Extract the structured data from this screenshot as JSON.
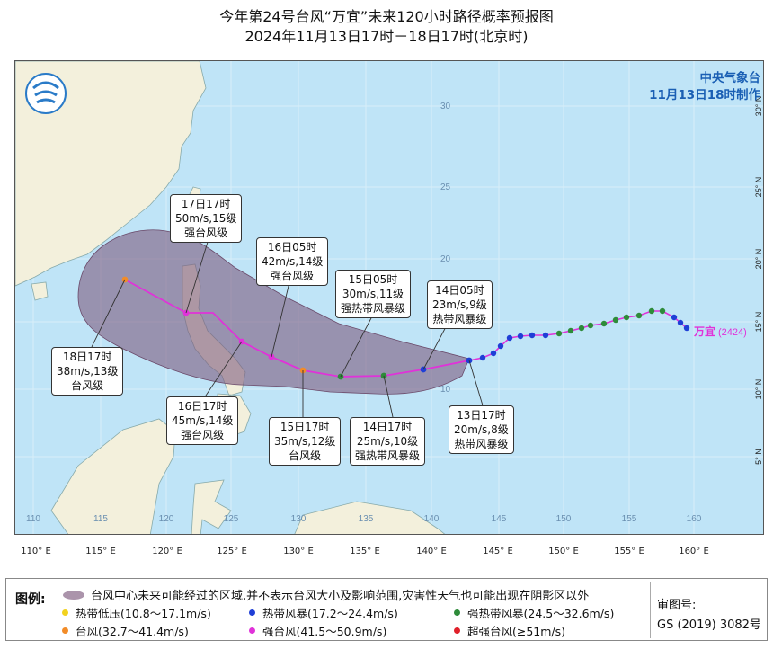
{
  "title": {
    "line1": "今年第24号台风“万宜”未来120小时路径概率预报图",
    "line2": "2024年11月13日17时－18日17时(北京时)"
  },
  "issuer": {
    "name": "中央气象台",
    "made_at": "11月13日18时制作"
  },
  "typhoon_label": {
    "name": "万宜",
    "code": "(2424)"
  },
  "callouts": [
    {
      "id": "18-17",
      "time": "18日17时",
      "wind": "38m/s,13级",
      "grade": "台风级"
    },
    {
      "id": "17-17",
      "time": "17日17时",
      "wind": "50m/s,15级",
      "grade": "强台风级"
    },
    {
      "id": "16-17",
      "time": "16日17时",
      "wind": "45m/s,14级",
      "grade": "强台风级"
    },
    {
      "id": "16-05",
      "time": "16日05时",
      "wind": "42m/s,14级",
      "grade": "强台风级"
    },
    {
      "id": "15-17",
      "time": "15日17时",
      "wind": "35m/s,12级",
      "grade": "台风级"
    },
    {
      "id": "15-05",
      "time": "15日05时",
      "wind": "30m/s,11级",
      "grade": "强热带风暴级"
    },
    {
      "id": "14-17",
      "time": "14日17时",
      "wind": "25m/s,10级",
      "grade": "强热带风暴级"
    },
    {
      "id": "14-05",
      "time": "14日05时",
      "wind": "23m/s,9级",
      "grade": "热带风暴级"
    },
    {
      "id": "13-17",
      "time": "13日17时",
      "wind": "20m/s,8级",
      "grade": "热带风暴级"
    }
  ],
  "grid": {
    "lon_inside": [
      "110",
      "115",
      "120",
      "125",
      "130",
      "135",
      "140",
      "145",
      "150",
      "155",
      "160"
    ],
    "lon_axis": [
      "110° E",
      "115° E",
      "120° E",
      "125° E",
      "130° E",
      "135° E",
      "140° E",
      "145° E",
      "150° E",
      "155° E",
      "160° E"
    ],
    "lat_inside": [
      "30",
      "25",
      "20",
      "15",
      "10"
    ],
    "lat_axis": [
      "30° N",
      "25° N",
      "20° N",
      "15° N",
      "10° N",
      "5° N"
    ]
  },
  "legend": {
    "title": "图例:",
    "area_desc": "台风中心未来可能经过的区域,并不表示台风大小及影响范围,灾害性天气也可能出现在阴影区以外",
    "items": [
      {
        "label": "热带低压(10.8～17.1m/s)",
        "color": "#f2d21e"
      },
      {
        "label": "热带风暴(17.2～24.4m/s)",
        "color": "#1f3fd6"
      },
      {
        "label": "强热带风暴(24.5～32.6m/s)",
        "color": "#2e8b3a"
      },
      {
        "label": "台风(32.7～41.4m/s)",
        "color": "#f28c28"
      },
      {
        "label": "强台风(41.5～50.9m/s)",
        "color": "#e032d9"
      },
      {
        "label": "超强台风(≥51m/s)",
        "color": "#e0202a"
      }
    ],
    "review_label": "审图号:",
    "review_number": "GS (2019) 3082号"
  }
}
